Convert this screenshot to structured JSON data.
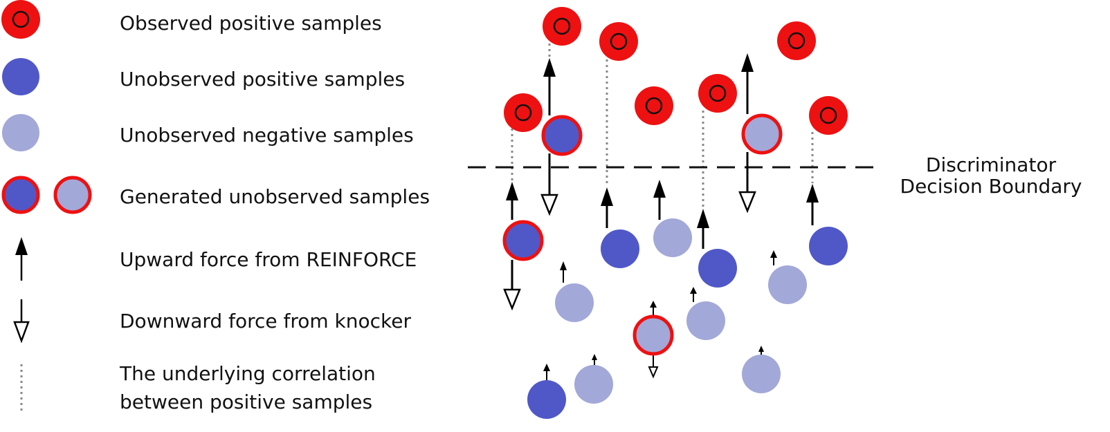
{
  "colors": {
    "observed_red": "#ee1111",
    "unobserved_positive_blue": "#5058c8",
    "unobserved_negative_blue": "#a2a8d8",
    "generated_ring": "#ee1111",
    "arrow": "#000000",
    "correlation_line": "#888888",
    "boundary": "#111111"
  },
  "legend": {
    "observed_positive": "Observed positive samples",
    "unobserved_positive": "Unobserved positive samples",
    "unobserved_negative": "Unobserved negative samples",
    "generated_unobserved": "Generated unobserved samples",
    "upward_force": "Upward force from REINFORCE",
    "downward_force": "Downward force from knocker",
    "correlation_line1": "The underlying correlation",
    "correlation_line2": "between positive samples"
  },
  "boundary": {
    "label_line1": "Discriminator",
    "label_line2": "Decision Boundary"
  }
}
